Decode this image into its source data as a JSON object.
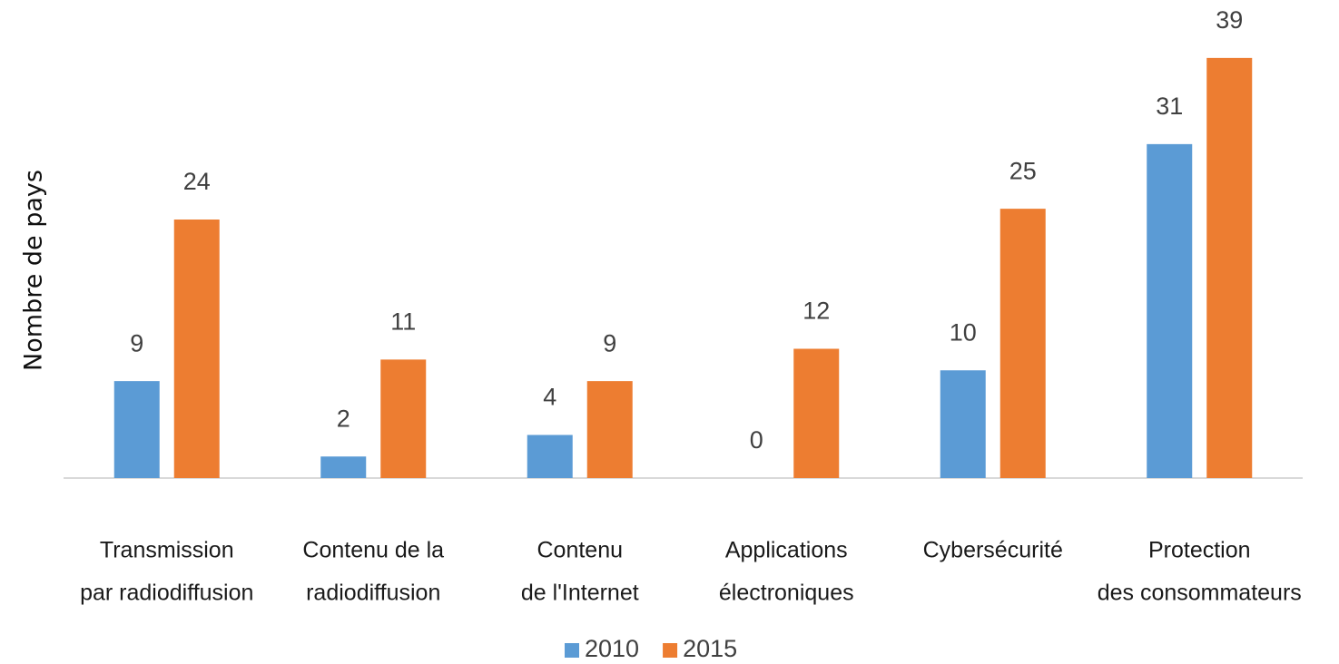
{
  "chart_data": {
    "type": "bar",
    "y_label": "Nombre de pays",
    "categories": [
      [
        "Transmission",
        "par radiodiffusion"
      ],
      [
        "Contenu de la",
        "radiodiffusion"
      ],
      [
        "Contenu",
        "de l'Internet"
      ],
      [
        "Applications",
        "électroniques"
      ],
      [
        "Cybersécurité"
      ],
      [
        "Protection",
        "des consommateurs"
      ]
    ],
    "series": [
      {
        "name": "2010",
        "color": "#5b9bd5",
        "values": [
          9,
          2,
          4,
          0,
          10,
          31
        ]
      },
      {
        "name": "2015",
        "color": "#ed7d31",
        "values": [
          24,
          11,
          9,
          12,
          25,
          39
        ]
      }
    ],
    "ylim": [
      0,
      40
    ]
  }
}
